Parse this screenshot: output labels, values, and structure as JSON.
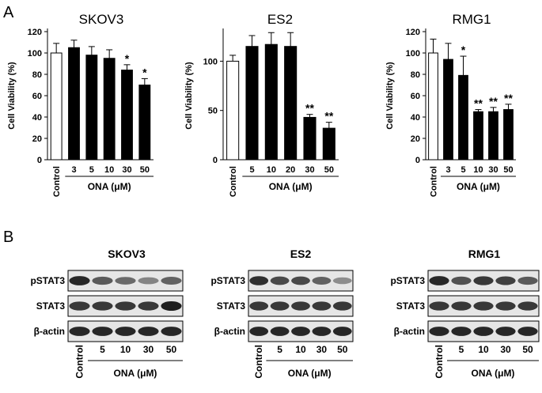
{
  "panels": {
    "a": "A",
    "b": "B"
  },
  "chart_data": [
    {
      "type": "bar",
      "title": "SKOV3",
      "ylabel": "Cell Viability (%)",
      "xlabel": "ONA (μM)",
      "ylim": [
        0,
        120
      ],
      "yticks": [
        0,
        20,
        40,
        60,
        80,
        100,
        120
      ],
      "categories": [
        "Control",
        "3",
        "5",
        "10",
        "30",
        "50"
      ],
      "values": [
        100,
        105,
        98,
        95,
        84,
        70
      ],
      "errors": [
        9,
        7,
        8,
        8,
        5,
        6
      ],
      "significance": [
        "",
        "",
        "",
        "",
        "*",
        "*"
      ],
      "bar_colors": [
        "#ffffff",
        "#000000",
        "#000000",
        "#000000",
        "#000000",
        "#000000"
      ]
    },
    {
      "type": "bar",
      "title": "ES2",
      "ylabel": "Cell Viability (%)",
      "xlabel": "ONA (μM)",
      "ylim": [
        0,
        130
      ],
      "yticks": [
        0,
        50,
        100
      ],
      "categories": [
        "Control",
        "5",
        "10",
        "20",
        "30",
        "50"
      ],
      "values": [
        100,
        115,
        117,
        115,
        43,
        32
      ],
      "errors": [
        6,
        11,
        12,
        14,
        3,
        6
      ],
      "significance": [
        "",
        "",
        "",
        "",
        "**",
        "**"
      ],
      "bar_colors": [
        "#ffffff",
        "#000000",
        "#000000",
        "#000000",
        "#000000",
        "#000000"
      ]
    },
    {
      "type": "bar",
      "title": "RMG1",
      "ylabel": "Cell Viability (%)",
      "xlabel": "ONA (μM)",
      "ylim": [
        0,
        120
      ],
      "yticks": [
        0,
        20,
        40,
        60,
        80,
        100,
        120
      ],
      "categories": [
        "Control",
        "3",
        "5",
        "10",
        "30",
        "50"
      ],
      "values": [
        100,
        94,
        79,
        45,
        45,
        47
      ],
      "errors": [
        13,
        15,
        18,
        2,
        4,
        5
      ],
      "significance": [
        "",
        "",
        "*",
        "**",
        "**",
        "**"
      ],
      "bar_colors": [
        "#ffffff",
        "#000000",
        "#000000",
        "#000000",
        "#000000",
        "#000000"
      ]
    }
  ],
  "blots": [
    {
      "title": "SKOV3",
      "rows": [
        "pSTAT3",
        "STAT3",
        "β-actin"
      ],
      "lanes": [
        "Control",
        "5",
        "10",
        "30",
        "50"
      ],
      "xlabel": "ONA (μM)"
    },
    {
      "title": "ES2",
      "rows": [
        "pSTAT3",
        "STAT3",
        "β-actin"
      ],
      "lanes": [
        "Control",
        "5",
        "10",
        "30",
        "50"
      ],
      "xlabel": "ONA (μM)"
    },
    {
      "title": "RMG1",
      "rows": [
        "pSTAT3",
        "STAT3",
        "β-actin"
      ],
      "lanes": [
        "Control",
        "5",
        "10",
        "30",
        "50"
      ],
      "xlabel": "ONA (μM)"
    }
  ]
}
